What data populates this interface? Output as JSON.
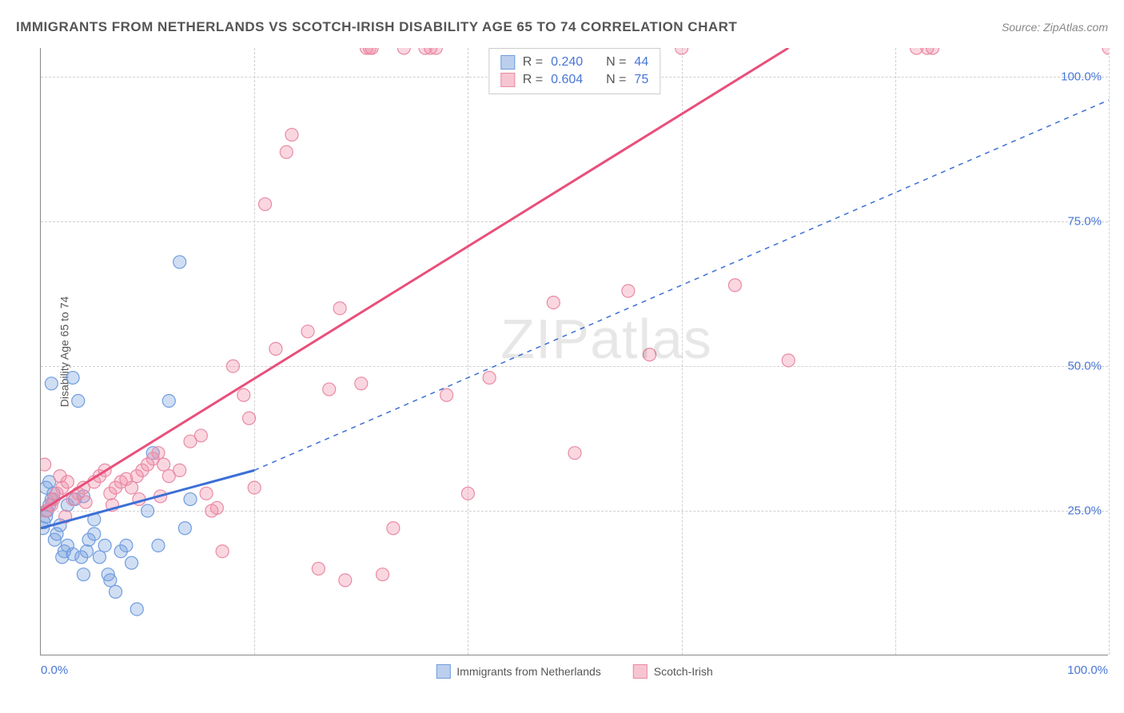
{
  "title": "IMMIGRANTS FROM NETHERLANDS VS SCOTCH-IRISH DISABILITY AGE 65 TO 74 CORRELATION CHART",
  "source": "Source: ZipAtlas.com",
  "watermark_a": "ZIP",
  "watermark_b": "atlas",
  "ylabel": "Disability Age 65 to 74",
  "chart": {
    "type": "scatter",
    "xlim": [
      0,
      100
    ],
    "ylim": [
      0,
      105
    ],
    "xtick_labels": {
      "min": "0.0%",
      "max": "100.0%"
    },
    "ytick_labels": [
      "25.0%",
      "50.0%",
      "75.0%",
      "100.0%"
    ],
    "ytick_values": [
      25,
      50,
      75,
      100
    ],
    "xgrid_values": [
      0,
      20,
      40,
      60,
      80,
      100
    ],
    "background_color": "#ffffff",
    "grid_color": "#d0d0d0",
    "axis_color": "#888888",
    "tick_label_color": "#4876d6",
    "series": [
      {
        "name": "Immigrants from Netherlands",
        "color_fill": "rgba(120,160,220,0.35)",
        "color_stroke": "#6f9de0",
        "marker_radius": 8,
        "trend": {
          "solid": true,
          "color": "#3b6fd6",
          "width": 3,
          "x1": 0,
          "y1": 22,
          "x2": 20,
          "y2": 32,
          "dash_extend": {
            "x2": 100,
            "y2": 96,
            "dash": "6,6",
            "width": 1.5
          }
        },
        "stats": {
          "R": "0.240",
          "N": "44"
        },
        "points": [
          [
            0.2,
            22
          ],
          [
            0.3,
            23
          ],
          [
            0.5,
            24
          ],
          [
            0.6,
            25
          ],
          [
            0.8,
            26
          ],
          [
            1.0,
            27
          ],
          [
            1.2,
            28
          ],
          [
            1.3,
            20
          ],
          [
            1.5,
            21
          ],
          [
            1.8,
            22.5
          ],
          [
            0.5,
            29
          ],
          [
            0.8,
            30
          ],
          [
            1.0,
            47
          ],
          [
            3.0,
            48
          ],
          [
            3.5,
            44
          ],
          [
            2.0,
            17
          ],
          [
            2.2,
            18
          ],
          [
            2.5,
            19
          ],
          [
            3.0,
            17.5
          ],
          [
            3.8,
            17
          ],
          [
            4.0,
            14
          ],
          [
            4.3,
            18
          ],
          [
            4.5,
            20
          ],
          [
            5.0,
            21
          ],
          [
            5.5,
            17
          ],
          [
            6.0,
            19
          ],
          [
            6.3,
            14
          ],
          [
            6.5,
            13
          ],
          [
            7.0,
            11
          ],
          [
            7.5,
            18
          ],
          [
            8.0,
            19
          ],
          [
            8.5,
            16
          ],
          [
            9.0,
            8
          ],
          [
            10.0,
            25
          ],
          [
            10.5,
            35
          ],
          [
            11.0,
            19
          ],
          [
            12.0,
            44
          ],
          [
            13.0,
            68
          ],
          [
            13.5,
            22
          ],
          [
            14.0,
            27
          ],
          [
            2.5,
            26
          ],
          [
            3.2,
            27
          ],
          [
            4.0,
            27.5
          ],
          [
            5.0,
            23.5
          ]
        ]
      },
      {
        "name": "Scotch-Irish",
        "color_fill": "rgba(240,140,165,0.35)",
        "color_stroke": "#e98aa5",
        "marker_radius": 8,
        "trend": {
          "solid": true,
          "color": "#e94f7b",
          "width": 3,
          "x1": 0,
          "y1": 25,
          "x2": 70,
          "y2": 105
        },
        "stats": {
          "R": "0.604",
          "N": "75"
        },
        "points": [
          [
            0.5,
            25
          ],
          [
            1.0,
            26
          ],
          [
            1.2,
            27
          ],
          [
            1.5,
            28
          ],
          [
            2.0,
            29
          ],
          [
            2.5,
            30
          ],
          [
            3.0,
            27
          ],
          [
            3.5,
            28
          ],
          [
            4.0,
            29
          ],
          [
            5.0,
            30
          ],
          [
            5.5,
            31
          ],
          [
            6.0,
            32
          ],
          [
            6.5,
            28
          ],
          [
            7.0,
            29
          ],
          [
            7.5,
            30
          ],
          [
            8.0,
            30.5
          ],
          [
            8.5,
            29
          ],
          [
            9.0,
            31
          ],
          [
            9.5,
            32
          ],
          [
            10.0,
            33
          ],
          [
            10.5,
            34
          ],
          [
            11.0,
            35
          ],
          [
            11.5,
            33
          ],
          [
            12.0,
            31
          ],
          [
            13.0,
            32
          ],
          [
            14.0,
            37
          ],
          [
            15.0,
            38
          ],
          [
            15.5,
            28
          ],
          [
            16.0,
            25
          ],
          [
            16.5,
            25.5
          ],
          [
            17.0,
            18
          ],
          [
            18.0,
            50
          ],
          [
            19.0,
            45
          ],
          [
            19.5,
            41
          ],
          [
            20.0,
            29
          ],
          [
            21.0,
            78
          ],
          [
            22.0,
            53
          ],
          [
            23.0,
            87
          ],
          [
            23.5,
            90
          ],
          [
            25.0,
            56
          ],
          [
            26.0,
            15
          ],
          [
            27.0,
            46
          ],
          [
            28.0,
            60
          ],
          [
            28.5,
            13
          ],
          [
            30.0,
            47
          ],
          [
            30.5,
            105
          ],
          [
            30.8,
            105
          ],
          [
            31.0,
            105
          ],
          [
            32.0,
            14
          ],
          [
            33.0,
            22
          ],
          [
            34.0,
            105
          ],
          [
            36.0,
            105
          ],
          [
            36.5,
            105
          ],
          [
            37.0,
            105
          ],
          [
            38.0,
            45
          ],
          [
            40.0,
            28
          ],
          [
            42.0,
            48
          ],
          [
            48.0,
            61
          ],
          [
            50.0,
            35
          ],
          [
            55.0,
            63
          ],
          [
            57.0,
            52
          ],
          [
            60.0,
            105
          ],
          [
            65.0,
            64
          ],
          [
            70.0,
            51
          ],
          [
            82.0,
            105
          ],
          [
            83.0,
            105
          ],
          [
            83.5,
            105
          ],
          [
            100.0,
            105
          ],
          [
            1.8,
            31
          ],
          [
            0.345,
            33
          ],
          [
            2.3,
            24
          ],
          [
            4.2,
            26.5
          ],
          [
            6.7,
            26
          ],
          [
            9.2,
            27
          ],
          [
            11.2,
            27.5
          ]
        ]
      }
    ]
  },
  "stats_box": {
    "label_r": "R =",
    "label_n": "N ="
  },
  "legend": {
    "items": [
      {
        "label": "Immigrants from Netherlands",
        "fill": "rgba(120,160,220,0.5)",
        "stroke": "#6f9de0"
      },
      {
        "label": "Scotch-Irish",
        "fill": "rgba(240,140,165,0.5)",
        "stroke": "#e98aa5"
      }
    ]
  }
}
